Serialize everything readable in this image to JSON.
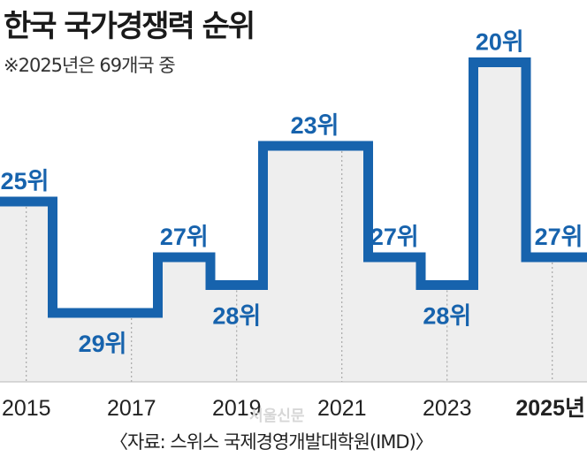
{
  "title": "한국 국가경쟁력 순위",
  "subtitle": "※2025년은 69개국 중",
  "source": "〈자료: 스위스 국제경영개발대학원(IMD)〉",
  "watermark": "서울신문",
  "colors": {
    "line": "#1763ad",
    "fill": "#eeeeee",
    "label": "#1763ad",
    "grid": "#999999"
  },
  "chart_data": {
    "type": "line",
    "step": true,
    "x": [
      2015,
      2016,
      2017,
      2018,
      2019,
      2020,
      2021,
      2022,
      2023,
      2024,
      2025
    ],
    "values": [
      25,
      29,
      29,
      27,
      28,
      23,
      23,
      27,
      28,
      20,
      27
    ],
    "labels": [
      "25위",
      "29위",
      "",
      "27위",
      "28위",
      "23위",
      "",
      "27위",
      "28위",
      "20위",
      "27위"
    ],
    "xticks": [
      "2015",
      "2017",
      "2019",
      "2021",
      "2023",
      "2025년"
    ],
    "inverted_y": true
  }
}
